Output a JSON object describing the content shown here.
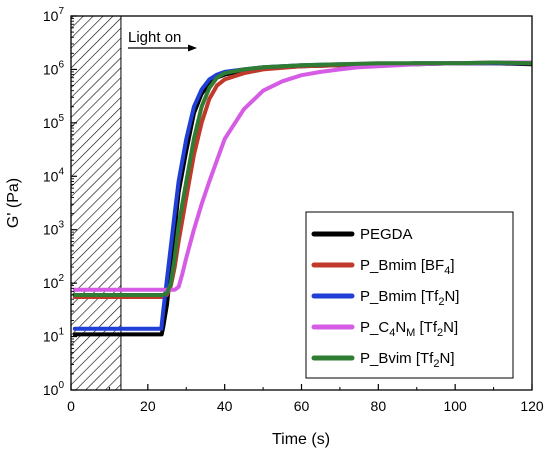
{
  "chart_data": {
    "type": "line",
    "title": "",
    "xlabel": "Time (s)",
    "ylabel": "G' (Pa)",
    "xlim": [
      0,
      120
    ],
    "ylim": [
      1,
      10000000
    ],
    "yscale": "log",
    "xticks": [
      0,
      20,
      40,
      60,
      80,
      100,
      120
    ],
    "xtick_labels": [
      "0",
      "20",
      "40",
      "60",
      "80",
      "100",
      "120"
    ],
    "yticks": [
      1,
      10,
      100,
      1000,
      10000,
      100000,
      1000000,
      10000000
    ],
    "ytick_labels": [
      {
        "base": "10",
        "exp": "0"
      },
      {
        "base": "10",
        "exp": "1"
      },
      {
        "base": "10",
        "exp": "2"
      },
      {
        "base": "10",
        "exp": "3"
      },
      {
        "base": "10",
        "exp": "4"
      },
      {
        "base": "10",
        "exp": "5"
      },
      {
        "base": "10",
        "exp": "6"
      },
      {
        "base": "10",
        "exp": "7"
      }
    ],
    "grid": false,
    "legend_position": "bottom-right",
    "annotation": {
      "text": "Light on",
      "arrow": true,
      "dark_region_x": [
        0,
        13
      ]
    },
    "series": [
      {
        "name": "PEGDA",
        "legend_parts": [
          {
            "t": "PEGDA"
          }
        ],
        "color": "#000000",
        "x": [
          1,
          5,
          10,
          15,
          20,
          23,
          23.6,
          24,
          25,
          26,
          27,
          28,
          30,
          32,
          34,
          36,
          38,
          40,
          45,
          50,
          60,
          70,
          80,
          90,
          100,
          110,
          120
        ],
        "y": [
          11,
          11,
          11,
          11,
          11,
          11,
          11,
          15,
          40,
          200,
          1000,
          5000,
          30000,
          150000,
          350000,
          550000,
          700000,
          800000,
          950000,
          1050000,
          1150000,
          1200000,
          1250000,
          1250000,
          1300000,
          1300000,
          1250000
        ]
      },
      {
        "name": "P_Bmim [BF4]",
        "legend_parts": [
          {
            "t": "P_Bmim [BF"
          },
          {
            "t": "4",
            "sub": true
          },
          {
            "t": "]"
          }
        ],
        "color": "#c0392b",
        "x": [
          1,
          5,
          10,
          15,
          20,
          24,
          25,
          26,
          27,
          28,
          30,
          32,
          34,
          36,
          38,
          40,
          45,
          50,
          60,
          70,
          80,
          90,
          100,
          110,
          120
        ],
        "y": [
          55,
          55,
          55,
          55,
          55,
          55,
          60,
          90,
          200,
          600,
          4000,
          25000,
          100000,
          280000,
          500000,
          650000,
          850000,
          1000000,
          1150000,
          1200000,
          1250000,
          1300000,
          1300000,
          1300000,
          1300000
        ]
      },
      {
        "name": "P_Bmim [Tf2N]",
        "legend_parts": [
          {
            "t": "P_Bmim [Tf"
          },
          {
            "t": "2",
            "sub": true
          },
          {
            "t": "N]"
          }
        ],
        "color": "#1f3fd6",
        "x": [
          1,
          5,
          10,
          15,
          20,
          23,
          23.5,
          24,
          25,
          26,
          27,
          28,
          30,
          32,
          34,
          36,
          38,
          40,
          45,
          50,
          60,
          70,
          80,
          90,
          100,
          110,
          120
        ],
        "y": [
          14,
          14,
          14,
          14,
          14,
          14,
          14,
          30,
          120,
          500,
          2000,
          8000,
          50000,
          200000,
          420000,
          650000,
          800000,
          900000,
          1000000,
          1100000,
          1200000,
          1250000,
          1250000,
          1300000,
          1300000,
          1300000,
          1300000
        ]
      },
      {
        "name": "P_C4NM [Tf2N]",
        "legend_parts": [
          {
            "t": "P_C"
          },
          {
            "t": "4",
            "sub": true
          },
          {
            "t": "N"
          },
          {
            "t": "M",
            "sub": true
          },
          {
            "t": " [Tf"
          },
          {
            "t": "2",
            "sub": true
          },
          {
            "t": "N]"
          }
        ],
        "color": "#d65ce6",
        "x": [
          1,
          5,
          10,
          15,
          20,
          25,
          27,
          28,
          29,
          30,
          32,
          34,
          36,
          38,
          40,
          45,
          50,
          55,
          60,
          65,
          70,
          75,
          80,
          90,
          100,
          110,
          120
        ],
        "y": [
          75,
          75,
          75,
          75,
          75,
          75,
          75,
          85,
          150,
          300,
          1000,
          3000,
          8000,
          20000,
          50000,
          180000,
          400000,
          600000,
          780000,
          900000,
          1000000,
          1100000,
          1150000,
          1250000,
          1300000,
          1350000,
          1350000
        ]
      },
      {
        "name": "P_Bvim [Tf2N]",
        "legend_parts": [
          {
            "t": "P_Bvim [Tf"
          },
          {
            "t": "2",
            "sub": true
          },
          {
            "t": "N]"
          }
        ],
        "color": "#2e7d32",
        "x": [
          1,
          5,
          10,
          15,
          20,
          24,
          25,
          26,
          27,
          28,
          30,
          32,
          34,
          36,
          38,
          40,
          45,
          50,
          60,
          70,
          80,
          90,
          100,
          110,
          120
        ],
        "y": [
          60,
          60,
          60,
          60,
          60,
          60,
          65,
          100,
          300,
          1200,
          8000,
          50000,
          200000,
          450000,
          700000,
          850000,
          1000000,
          1100000,
          1200000,
          1250000,
          1300000,
          1300000,
          1300000,
          1350000,
          1300000
        ]
      }
    ]
  }
}
